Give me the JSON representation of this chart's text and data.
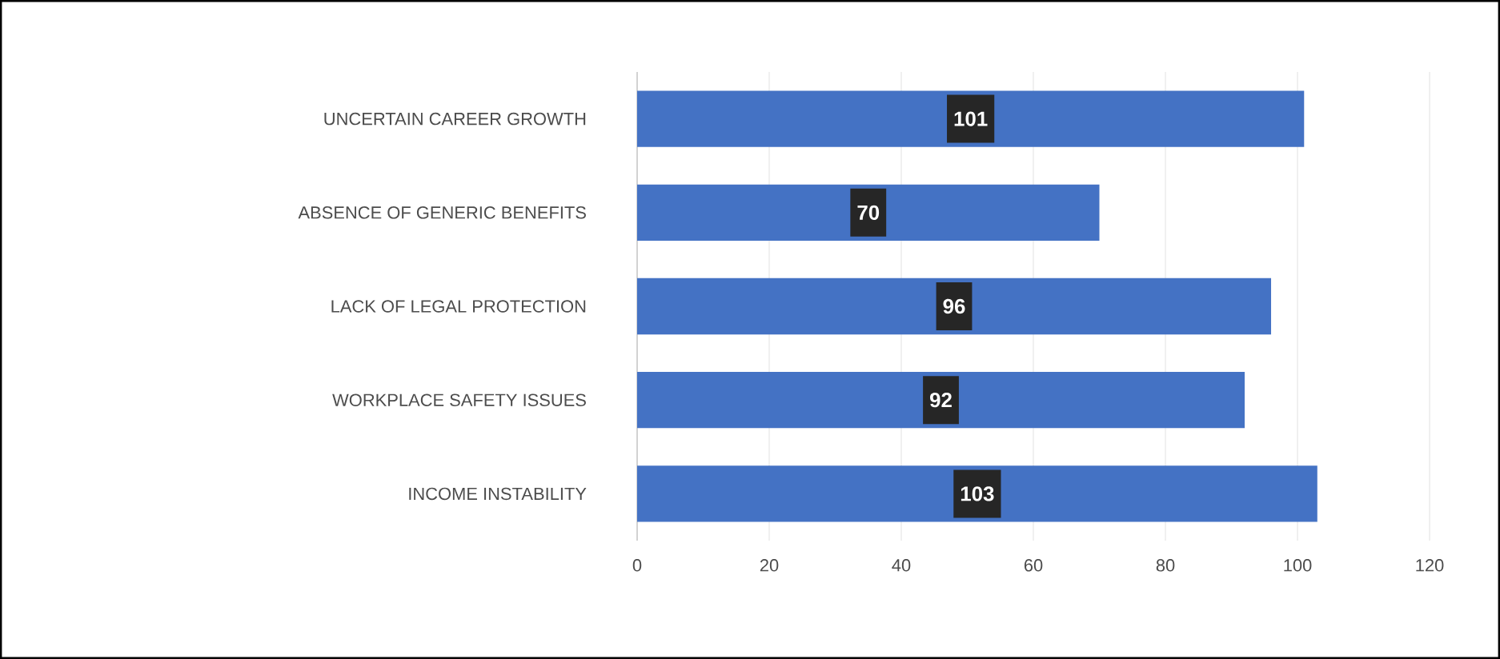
{
  "chart_data": {
    "type": "bar",
    "orientation": "horizontal",
    "categories": [
      "UNCERTAIN CAREER GROWTH",
      "ABSENCE OF GENERIC BENEFITS",
      "LACK OF LEGAL PROTECTION",
      "WORKPLACE SAFETY ISSUES",
      "INCOME INSTABILITY"
    ],
    "values": [
      101,
      70,
      96,
      92,
      103
    ],
    "color": "#4472c4",
    "xlim": [
      0,
      120
    ],
    "xticks": [
      0,
      20,
      40,
      60,
      80,
      100,
      120
    ],
    "grid": "x",
    "data_labels": true
  }
}
